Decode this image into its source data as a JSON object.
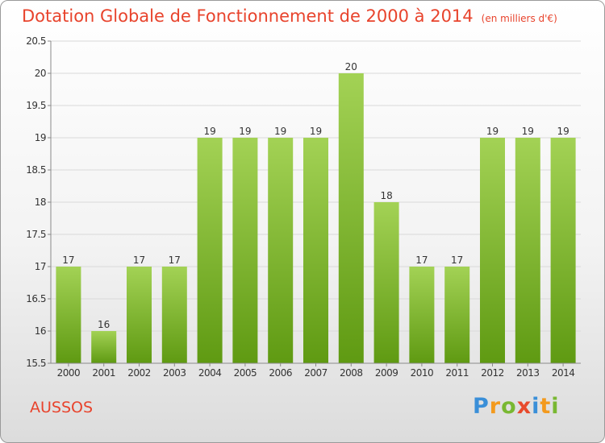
{
  "title": "Dotation Globale de Fonctionnement de 2000 à 2014",
  "unit": "(en milliers d'€)",
  "commune": "AUSSOS",
  "logo": {
    "letters": [
      "P",
      "r",
      "o",
      "x",
      "i",
      "t",
      "i"
    ],
    "colors": [
      "#3a8fd8",
      "#f39a1e",
      "#79b832",
      "#e84a2c",
      "#3a8fd8",
      "#f39a1e",
      "#79b832"
    ]
  },
  "colors": {
    "title": "#e8432c",
    "bar_light": "#a3d255",
    "bar_dark": "#5f9a12",
    "grid": "#d9d9d9",
    "axis": "#8a8a8a"
  },
  "chart_data": {
    "type": "bar",
    "categories": [
      "2000",
      "2001",
      "2002",
      "2003",
      "2004",
      "2005",
      "2006",
      "2007",
      "2008",
      "2009",
      "2010",
      "2011",
      "2012",
      "2013",
      "2014"
    ],
    "values": [
      17,
      16,
      17,
      17,
      19,
      19,
      19,
      19,
      20,
      18,
      17,
      17,
      19,
      19,
      19
    ],
    "ylim": [
      15.5,
      20.5
    ],
    "yticks": [
      15.5,
      16,
      16.5,
      17,
      17.5,
      18,
      18.5,
      19,
      19.5,
      20,
      20.5
    ],
    "ytick_labels": [
      "15.5",
      "16",
      "16.5",
      "17",
      "17.5",
      "18",
      "18.5",
      "19",
      "19.5",
      "20",
      "20.5"
    ],
    "title": "Dotation Globale de Fonctionnement de 2000 à 2014",
    "xlabel": "",
    "ylabel": ""
  }
}
